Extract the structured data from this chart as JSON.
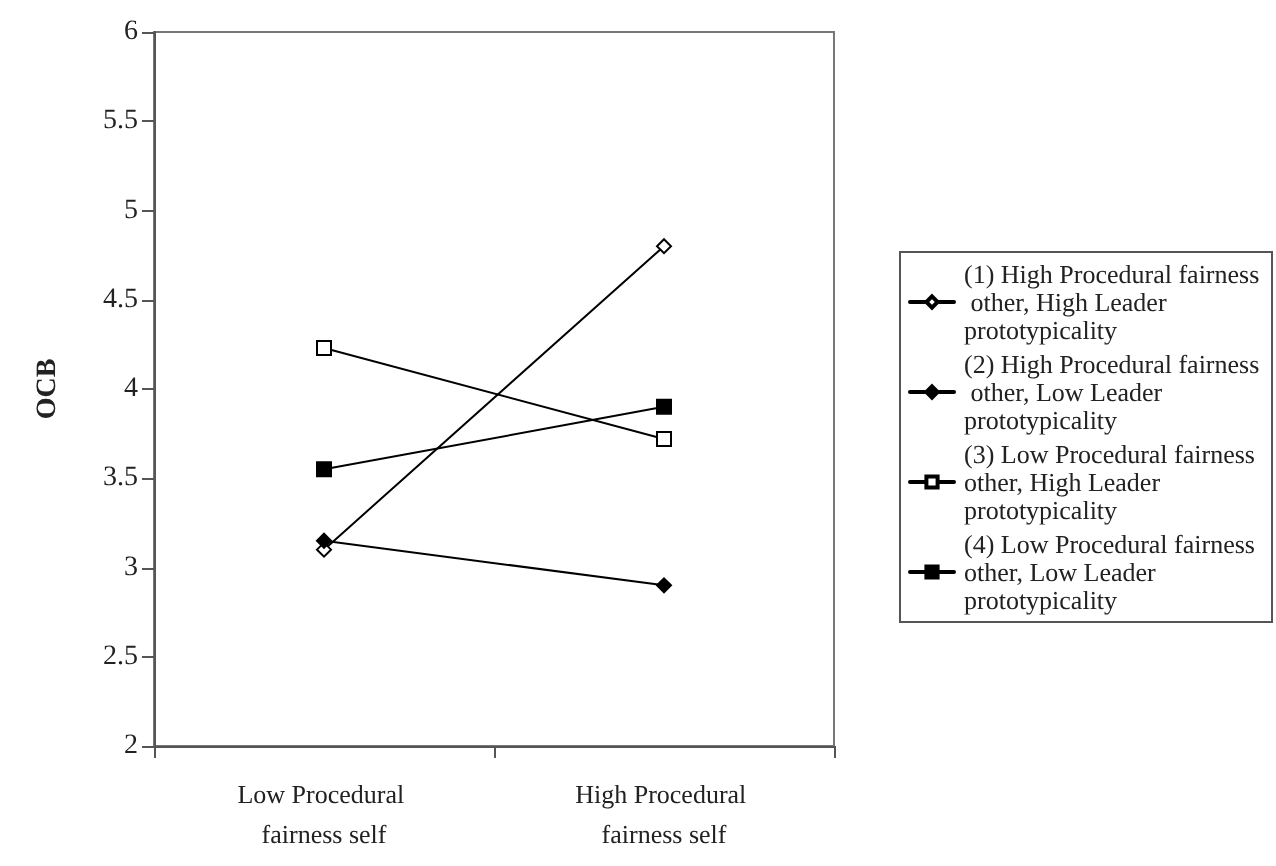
{
  "chart_data": {
    "type": "line",
    "ylabel": "OCB",
    "categories": [
      "Low Procedural fairness self",
      "High Procedural fairness self"
    ],
    "series": [
      {
        "name": "(1) High Procedural fairness other, High Leader prototypicality",
        "color": "#000000",
        "marker": "diamond",
        "colors": [
          "#ffffff",
          "#ffffff"
        ],
        "values": [
          3.1,
          4.8
        ]
      },
      {
        "name": "(2) High Procedural fairness other, Low Leader prototypicality",
        "color": "#000000",
        "marker": "diamond",
        "values": [
          3.15,
          2.9
        ]
      },
      {
        "name": "(3) Low Procedural fairness other, High Leader prototypicality",
        "color": "#000000",
        "marker": "square",
        "colors": [
          "#ffffff",
          "#ffffff"
        ],
        "values": [
          4.23,
          3.72
        ]
      },
      {
        "name": "(4) Low Procedural fairness other, Low Leader prototypicality",
        "color": "#000000",
        "marker": "square",
        "values": [
          3.55,
          3.9
        ]
      }
    ],
    "ylim": [
      2,
      6
    ],
    "yticks": [
      2,
      2.5,
      3,
      3.5,
      4,
      4.5,
      5,
      5.5,
      6
    ],
    "grid": false,
    "legend": "right",
    "line_style": "solid"
  }
}
